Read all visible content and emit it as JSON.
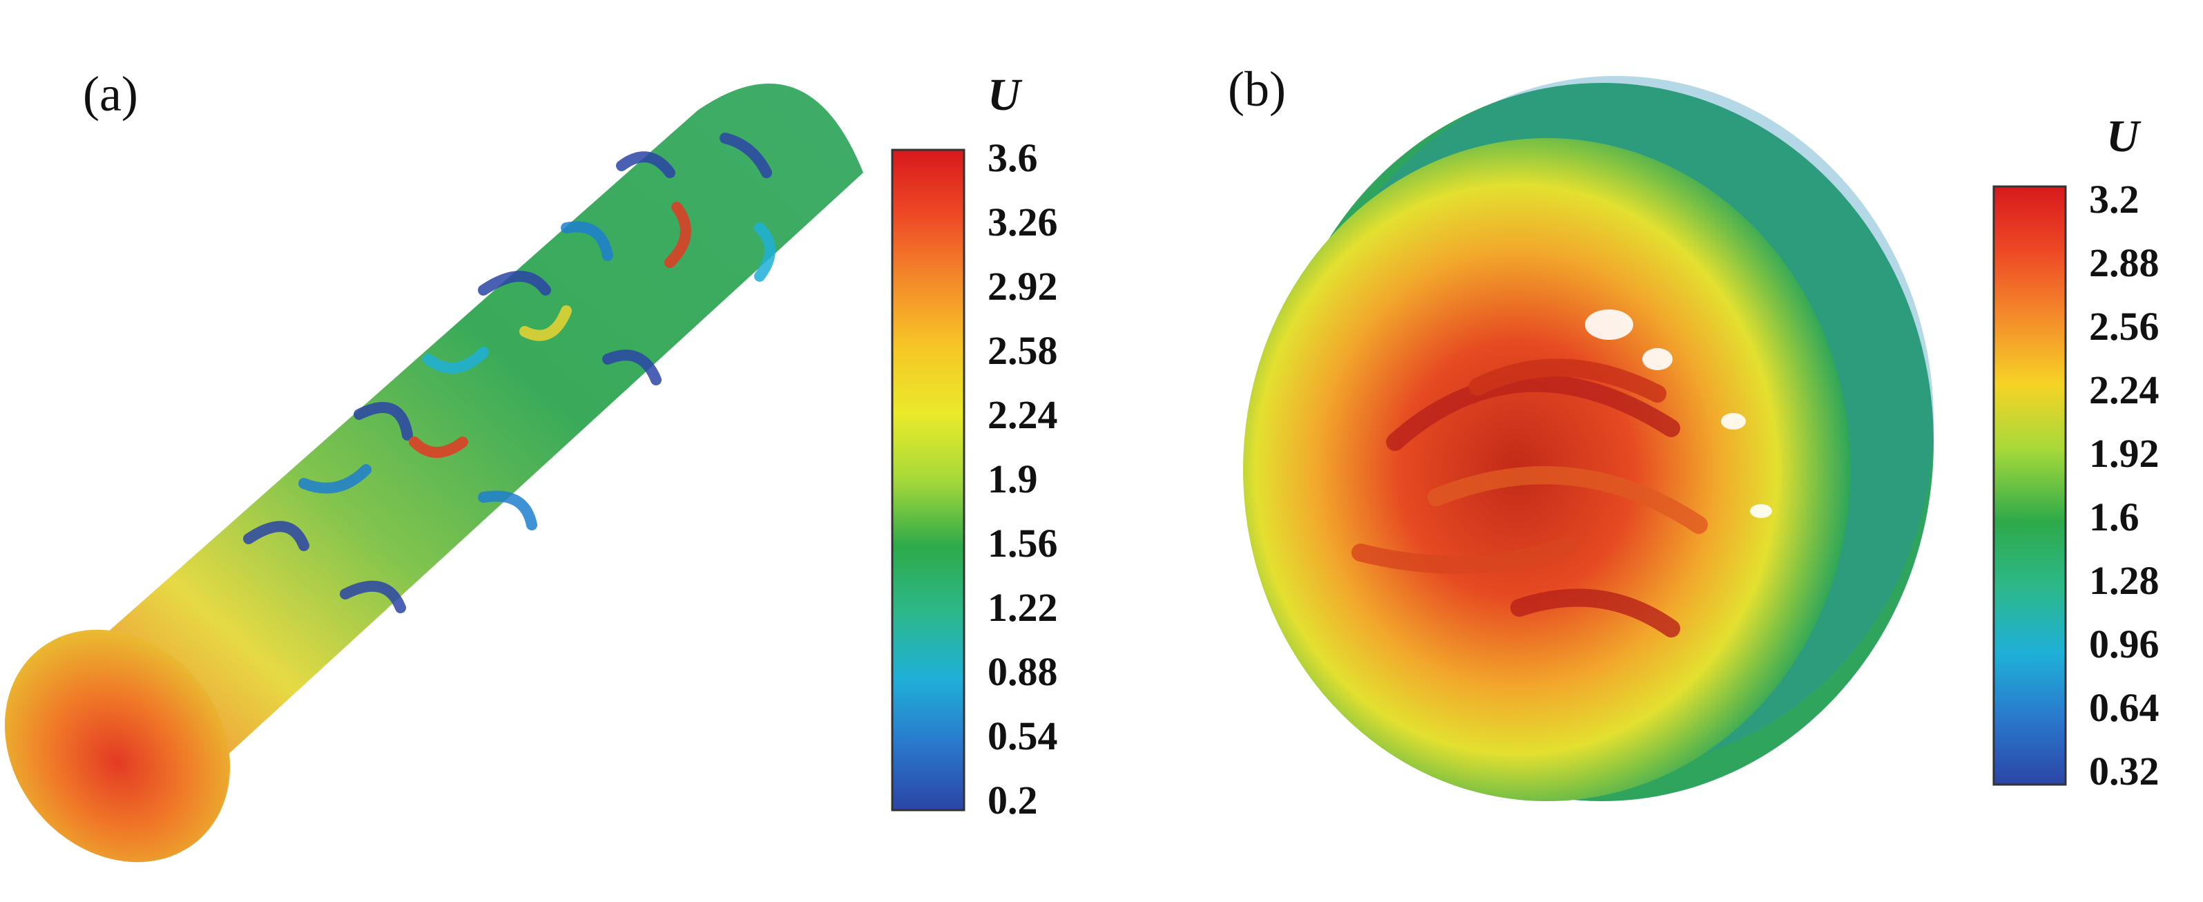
{
  "panels": [
    {
      "label": "(a)",
      "colorbar": {
        "title": "U",
        "ticks": [
          "3.6",
          "3.26",
          "2.92",
          "2.58",
          "2.24",
          "1.9",
          "1.56",
          "1.22",
          "0.88",
          "0.54",
          "0.2"
        ],
        "range": [
          0.2,
          3.6
        ]
      }
    },
    {
      "label": "(b)",
      "colorbar": {
        "title": "U",
        "ticks": [
          "3.2",
          "2.88",
          "2.56",
          "2.24",
          "1.92",
          "1.6",
          "1.28",
          "0.96",
          "0.64",
          "0.32"
        ],
        "range": [
          0.32,
          3.2
        ]
      }
    }
  ],
  "colors": {
    "colormap": [
      "#d7191c",
      "#ee4a26",
      "#f48c2b",
      "#f6c726",
      "#eaea2a",
      "#a6d93a",
      "#2eaa4a",
      "#2cb88a",
      "#1fb0d8",
      "#2a78cc",
      "#2b45a6"
    ]
  }
}
